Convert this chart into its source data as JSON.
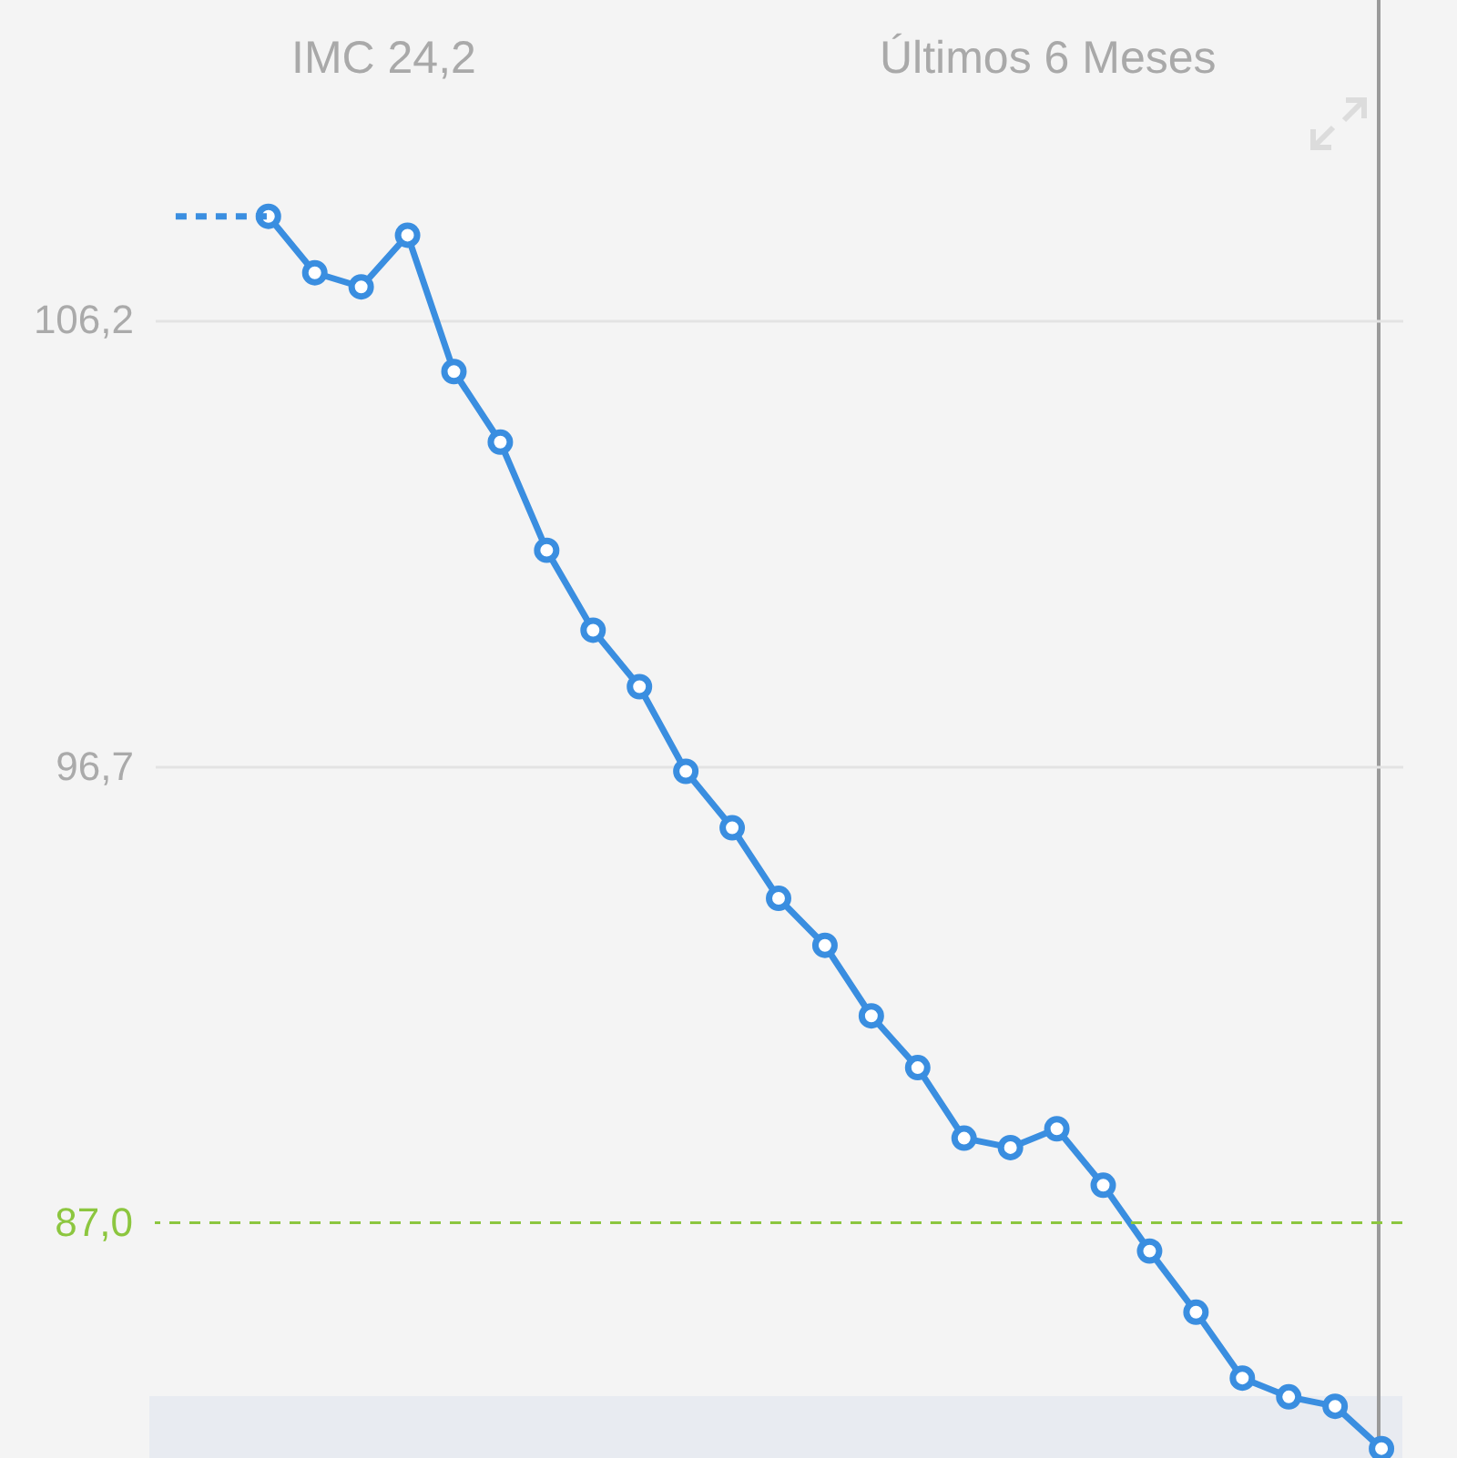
{
  "chart_data": {
    "type": "line",
    "annotations": [
      "IMC 24,2",
      "Últimos 6 Meses"
    ],
    "categories": [
      null,
      null,
      null,
      null,
      null,
      null,
      null,
      null,
      null,
      null,
      null,
      null,
      null,
      null,
      null,
      null,
      null,
      null,
      null,
      null,
      null,
      null,
      null,
      null,
      null,
      null,
      null
    ],
    "ylim": [
      82,
      113
    ],
    "yticks": [
      {
        "value": 106.2,
        "label": "106,2"
      },
      {
        "value": 96.7,
        "label": "96,7"
      }
    ],
    "tick_labels": "y",
    "grid": "y",
    "marker": "circle",
    "series": [
      {
        "color": "#3a8ee0",
        "line_style": "solid",
        "values": [
          null,
          null,
          108.4,
          107.2,
          106.9,
          108.0,
          105.1,
          103.6,
          101.3,
          99.6,
          98.4,
          96.6,
          95.4,
          93.9,
          92.9,
          91.4,
          90.3,
          88.8,
          88.6,
          89.0,
          87.8,
          86.4,
          85.1,
          83.7,
          83.3,
          83.1,
          82.2
        ]
      },
      {
        "color": "#3a8ee0",
        "line_style": "dashed",
        "marker": "none",
        "values": [
          108.4,
          108.4,
          108.4,
          null,
          null,
          null,
          null,
          null,
          null,
          null,
          null,
          null,
          null,
          null,
          null,
          null,
          null,
          null,
          null,
          null,
          null,
          null,
          null,
          null,
          null,
          null,
          null
        ]
      }
    ],
    "ref_lines": [
      {
        "axis": "y",
        "value": 87.0,
        "label": "87,0",
        "color": "#8cc63f",
        "line_style": "dashed"
      }
    ]
  }
}
